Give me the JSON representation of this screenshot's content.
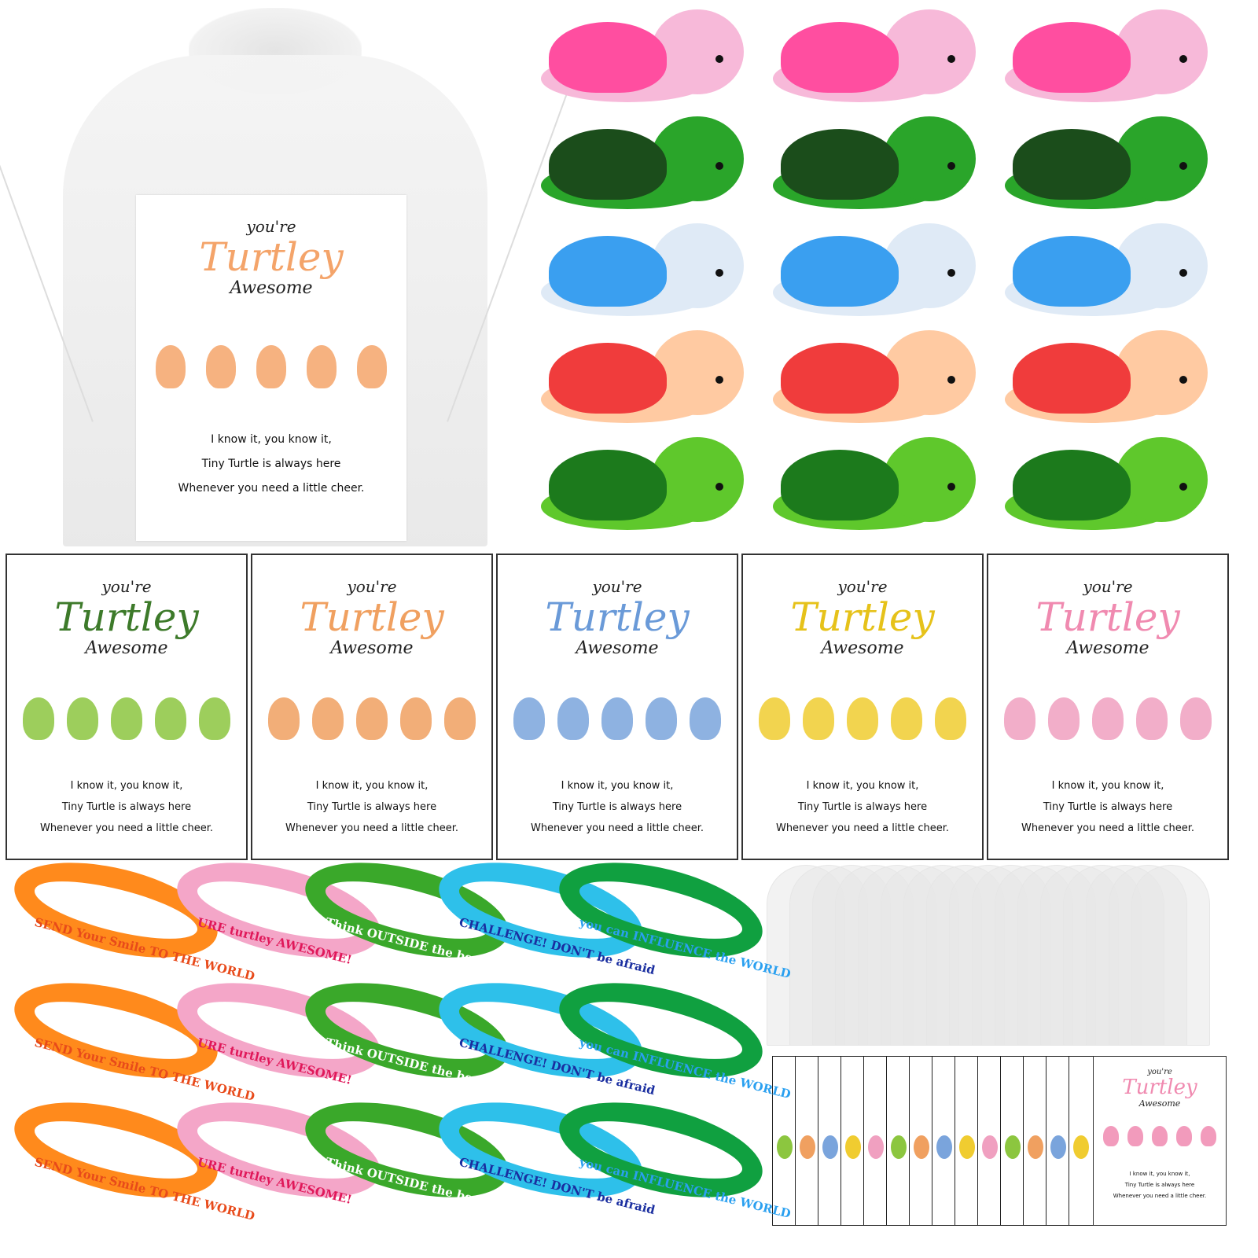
{
  "card_text": {
    "youre": "you're",
    "turtley": "Turtley",
    "awesome": "Awesome",
    "line1": "I know it, you know it,",
    "line2": "Tiny Turtle is always here",
    "line3": "Whenever you need a little cheer."
  },
  "big_card": {
    "color": "#f4a46a"
  },
  "cards": [
    {
      "color": "#3d7a2a",
      "mini": "#8cc63f"
    },
    {
      "color": "#f0a060",
      "mini": "#f0a060"
    },
    {
      "color": "#6a9ad8",
      "mini": "#7aa4dc"
    },
    {
      "color": "#e6c21a",
      "mini": "#f0cc30"
    },
    {
      "color": "#f08ab0",
      "mini": "#f0a0c0"
    }
  ],
  "turtles": [
    {
      "shell": "#ff4ea0",
      "body": "#f7b9d9"
    },
    {
      "shell": "#1b4d1b",
      "body": "#2aa52a"
    },
    {
      "shell": "#3a9ff0",
      "body": "#dfeaf6"
    },
    {
      "shell": "#f03c3c",
      "body": "#ffcaa2"
    },
    {
      "shell": "#1c7a1c",
      "body": "#5fc82c"
    }
  ],
  "bracelets": [
    {
      "color": "#ff8a1c",
      "text": "SEND Your Smile TO THE WORLD",
      "text_color": "#e84a1a"
    },
    {
      "color": "#f4a6c8",
      "text": "URE turtley AWESOME!",
      "text_color": "#e0185a"
    },
    {
      "color": "#3aa82a",
      "text": "Think OUTSIDE the box!",
      "text_color": "#ffffff"
    },
    {
      "color": "#2ec0ea",
      "text": "CHALLENGE!  DON'T be afraid",
      "text_color": "#1a2ea0"
    },
    {
      "color": "#10a040",
      "text": "you can INFLUENCE the WORLD",
      "text_color": "#2aa0f0"
    }
  ],
  "strip_colors": [
    "#8cc63f",
    "#f0a060",
    "#7aa4dc",
    "#f0cc30",
    "#f0a0c0",
    "#8cc63f",
    "#f0a060",
    "#7aa4dc",
    "#f0cc30",
    "#f0a0c0",
    "#8cc63f",
    "#f0a060",
    "#7aa4dc",
    "#f0cc30"
  ],
  "small_card": {
    "color": "#f08ab0"
  }
}
